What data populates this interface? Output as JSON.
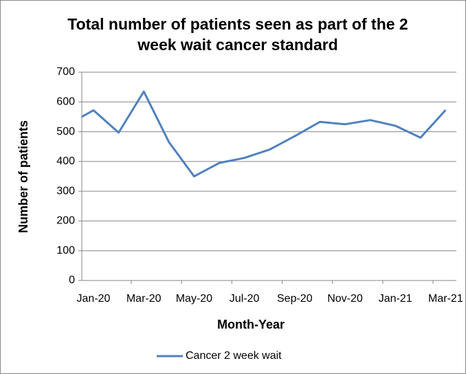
{
  "chart_data": {
    "type": "line",
    "title": "Total number of patients seen as part of the 2 week wait cancer standard",
    "x_label": "Month-Year",
    "y_label": "Number of patients",
    "categories": [
      null,
      "Jan-20",
      null,
      "Mar-20",
      null,
      "May-20",
      null,
      "Jul-20",
      null,
      "Sep-20",
      null,
      "Nov-20",
      null,
      "Jan-21",
      null,
      "Mar-21"
    ],
    "series": [
      {
        "name": "Cancer 2 week wait",
        "color": "#4f81bd",
        "values": [
          550,
          572,
          497,
          635,
          465,
          350,
          395,
          412,
          440,
          485,
          533,
          525,
          539,
          520,
          480,
          573
        ]
      }
    ],
    "ylim": [
      0,
      700
    ],
    "yticks": [
      0,
      100,
      200,
      300,
      400,
      500,
      600,
      700
    ],
    "grid": true,
    "legend": "bottom"
  }
}
